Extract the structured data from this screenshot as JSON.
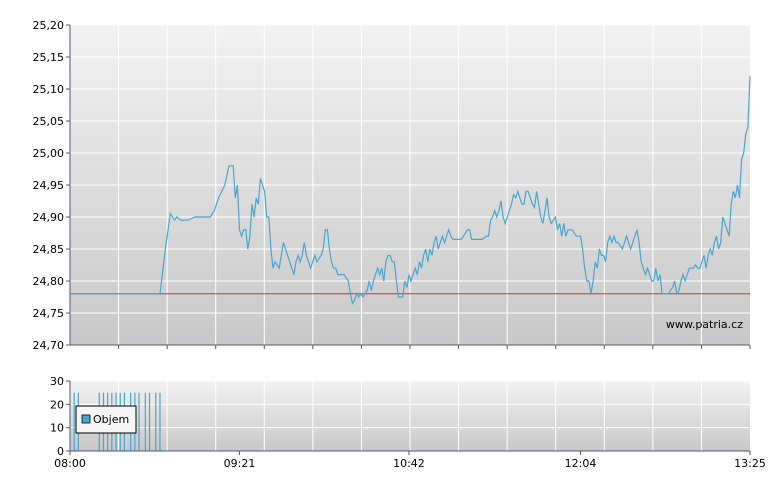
{
  "colors": {
    "price_line": "#4aa6cf",
    "reference_line": "#e03030",
    "volume_bar": "#4aa6cf",
    "grid": "#ffffff",
    "plot_top": "#f2f2f2",
    "plot_bottom": "#c8c8c8",
    "axis": "#555577"
  },
  "watermark": "www.patria.cz",
  "chart_data": [
    {
      "type": "line",
      "title": "",
      "xlabel": "",
      "ylabel": "",
      "ylim": [
        24.7,
        25.2
      ],
      "xlim_minutes": [
        0,
        325
      ],
      "y_ticks": [
        "24,70",
        "24,75",
        "24,80",
        "24,85",
        "24,90",
        "24,95",
        "25,00",
        "25,05",
        "25,10",
        "25,15",
        "25,20"
      ],
      "reference_value": 24.78,
      "grid": true,
      "series": [
        {
          "points": [
            [
              0,
              24.78
            ],
            [
              43,
              24.78
            ],
            [
              46,
              24.86
            ],
            [
              48,
              24.905
            ],
            [
              50,
              24.895
            ],
            [
              51,
              24.9
            ],
            [
              53,
              24.895
            ],
            [
              56,
              24.895
            ],
            [
              60,
              24.9
            ],
            [
              64,
              24.9
            ],
            [
              67,
              24.9
            ],
            [
              69,
              24.91
            ],
            [
              71,
              24.93
            ],
            [
              74,
              24.95
            ],
            [
              76,
              24.98
            ],
            [
              78,
              24.98
            ],
            [
              79,
              24.93
            ],
            [
              80,
              24.95
            ],
            [
              81,
              24.88
            ],
            [
              82,
              24.87
            ],
            [
              83,
              24.88
            ],
            [
              84,
              24.88
            ],
            [
              85,
              24.85
            ],
            [
              86,
              24.87
            ],
            [
              87,
              24.92
            ],
            [
              88,
              24.9
            ],
            [
              89,
              24.93
            ],
            [
              90,
              24.92
            ],
            [
              91,
              24.96
            ],
            [
              92,
              24.95
            ],
            [
              93,
              24.94
            ],
            [
              94,
              24.9
            ],
            [
              95,
              24.9
            ],
            [
              96,
              24.85
            ],
            [
              97,
              24.82
            ],
            [
              98,
              24.83
            ],
            [
              100,
              24.82
            ],
            [
              102,
              24.86
            ],
            [
              104,
              24.84
            ],
            [
              106,
              24.82
            ],
            [
              107,
              24.81
            ],
            [
              108,
              24.83
            ],
            [
              109,
              24.84
            ],
            [
              110,
              24.83
            ],
            [
              111,
              24.84
            ],
            [
              112,
              24.86
            ],
            [
              113,
              24.84
            ],
            [
              115,
              24.82
            ],
            [
              117,
              24.84
            ],
            [
              118,
              24.83
            ],
            [
              120,
              24.84
            ],
            [
              121,
              24.85
            ],
            [
              122,
              24.88
            ],
            [
              123,
              24.88
            ],
            [
              124,
              24.85
            ],
            [
              125,
              24.83
            ],
            [
              126,
              24.82
            ],
            [
              127,
              24.82
            ],
            [
              128,
              24.81
            ],
            [
              131,
              24.81
            ],
            [
              133,
              24.8
            ],
            [
              134,
              24.78
            ],
            [
              135,
              24.765
            ],
            [
              136,
              24.77
            ],
            [
              137,
              24.78
            ],
            [
              138,
              24.775
            ],
            [
              139,
              24.78
            ],
            [
              140,
              24.775
            ],
            [
              141,
              24.78
            ],
            [
              142,
              24.785
            ],
            [
              143,
              24.8
            ],
            [
              144,
              24.785
            ],
            [
              145,
              24.8
            ],
            [
              146,
              24.81
            ],
            [
              147,
              24.82
            ],
            [
              148,
              24.81
            ],
            [
              149,
              24.82
            ],
            [
              150,
              24.8
            ],
            [
              151,
              24.83
            ],
            [
              152,
              24.84
            ],
            [
              153,
              24.84
            ],
            [
              154,
              24.83
            ],
            [
              155,
              24.83
            ],
            [
              156,
              24.8
            ],
            [
              157,
              24.775
            ],
            [
              158,
              24.775
            ],
            [
              159,
              24.775
            ],
            [
              160,
              24.8
            ],
            [
              161,
              24.79
            ],
            [
              162,
              24.81
            ],
            [
              163,
              24.8
            ],
            [
              164,
              24.81
            ],
            [
              165,
              24.82
            ],
            [
              166,
              24.81
            ],
            [
              167,
              24.83
            ],
            [
              168,
              24.82
            ],
            [
              169,
              24.84
            ],
            [
              170,
              24.85
            ],
            [
              171,
              24.83
            ],
            [
              172,
              24.85
            ],
            [
              173,
              24.84
            ],
            [
              174,
              24.86
            ],
            [
              175,
              24.87
            ],
            [
              176,
              24.85
            ],
            [
              177,
              24.86
            ],
            [
              178,
              24.87
            ],
            [
              179,
              24.86
            ],
            [
              180,
              24.87
            ],
            [
              181,
              24.88
            ],
            [
              182,
              24.87
            ],
            [
              183,
              24.865
            ],
            [
              185,
              24.865
            ],
            [
              187,
              24.865
            ],
            [
              188,
              24.87
            ],
            [
              190,
              24.88
            ],
            [
              191,
              24.88
            ],
            [
              192,
              24.865
            ],
            [
              193,
              24.865
            ],
            [
              196,
              24.865
            ],
            [
              197,
              24.865
            ],
            [
              199,
              24.87
            ],
            [
              200,
              24.87
            ],
            [
              201,
              24.895
            ],
            [
              202,
              24.9
            ],
            [
              203,
              24.91
            ],
            [
              204,
              24.9
            ],
            [
              205,
              24.91
            ],
            [
              206,
              24.925
            ],
            [
              207,
              24.9
            ],
            [
              208,
              24.89
            ],
            [
              209,
              24.9
            ],
            [
              210,
              24.91
            ],
            [
              211,
              24.92
            ],
            [
              212,
              24.935
            ],
            [
              213,
              24.93
            ],
            [
              214,
              24.94
            ],
            [
              215,
              24.93
            ],
            [
              216,
              24.92
            ],
            [
              217,
              24.92
            ],
            [
              218,
              24.94
            ],
            [
              219,
              24.94
            ],
            [
              220,
              24.93
            ],
            [
              221,
              24.92
            ],
            [
              222,
              24.915
            ],
            [
              223,
              24.94
            ],
            [
              224,
              24.92
            ],
            [
              225,
              24.9
            ],
            [
              226,
              24.89
            ],
            [
              227,
              24.91
            ],
            [
              228,
              24.93
            ],
            [
              229,
              24.9
            ],
            [
              230,
              24.89
            ],
            [
              232,
              24.9
            ],
            [
              233,
              24.88
            ],
            [
              234,
              24.89
            ],
            [
              235,
              24.87
            ],
            [
              236,
              24.89
            ],
            [
              237,
              24.87
            ],
            [
              238,
              24.88
            ],
            [
              240,
              24.88
            ],
            [
              242,
              24.87
            ],
            [
              244,
              24.87
            ],
            [
              245,
              24.85
            ],
            [
              246,
              24.82
            ],
            [
              247,
              24.8
            ],
            [
              248,
              24.8
            ],
            [
              249,
              24.78
            ],
            [
              250,
              24.8
            ],
            [
              251,
              24.83
            ],
            [
              252,
              24.82
            ],
            [
              253,
              24.85
            ],
            [
              254,
              24.84
            ],
            [
              255,
              24.84
            ],
            [
              256,
              24.83
            ],
            [
              257,
              24.86
            ],
            [
              258,
              24.87
            ],
            [
              259,
              24.86
            ],
            [
              260,
              24.87
            ],
            [
              261,
              24.86
            ],
            [
              262,
              24.86
            ],
            [
              264,
              24.85
            ],
            [
              265,
              24.86
            ],
            [
              266,
              24.87
            ],
            [
              267,
              24.86
            ],
            [
              268,
              24.85
            ],
            [
              269,
              24.86
            ],
            [
              270,
              24.87
            ],
            [
              271,
              24.88
            ],
            [
              272,
              24.86
            ],
            [
              273,
              24.83
            ],
            [
              274,
              24.82
            ],
            [
              275,
              24.81
            ],
            [
              276,
              24.82
            ],
            [
              277,
              24.81
            ],
            [
              278,
              24.8
            ],
            [
              279,
              24.8
            ],
            [
              280,
              24.82
            ],
            [
              281,
              24.8
            ],
            [
              282,
              24.81
            ],
            [
              283,
              24.78
            ],
            [
              284,
              24.78
            ],
            [
              285,
              24.78
            ],
            [
              286,
              24.78
            ],
            [
              287,
              24.785
            ],
            [
              288,
              24.79
            ],
            [
              289,
              24.8
            ],
            [
              290,
              24.78
            ],
            [
              291,
              24.785
            ],
            [
              292,
              24.8
            ],
            [
              293,
              24.81
            ],
            [
              294,
              24.8
            ],
            [
              295,
              24.81
            ],
            [
              296,
              24.82
            ],
            [
              297,
              24.82
            ],
            [
              298,
              24.82
            ],
            [
              299,
              24.825
            ],
            [
              300,
              24.82
            ],
            [
              301,
              24.82
            ],
            [
              302,
              24.83
            ],
            [
              303,
              24.84
            ],
            [
              304,
              24.82
            ],
            [
              305,
              24.84
            ],
            [
              306,
              24.85
            ],
            [
              307,
              24.84
            ],
            [
              308,
              24.86
            ],
            [
              309,
              24.87
            ],
            [
              310,
              24.85
            ],
            [
              311,
              24.86
            ],
            [
              312,
              24.9
            ],
            [
              313,
              24.89
            ],
            [
              314,
              24.88
            ],
            [
              315,
              24.87
            ],
            [
              316,
              24.92
            ],
            [
              317,
              24.94
            ],
            [
              318,
              24.93
            ],
            [
              319,
              24.95
            ],
            [
              320,
              24.93
            ],
            [
              321,
              24.99
            ],
            [
              322,
              25.0
            ],
            [
              323,
              25.03
            ],
            [
              324,
              25.04
            ],
            [
              325,
              25.12
            ]
          ]
        }
      ]
    },
    {
      "type": "bar",
      "title": "",
      "xlabel": "",
      "ylabel": "",
      "ylim": [
        0,
        30
      ],
      "y_ticks": [
        "0",
        "10",
        "20",
        "30"
      ],
      "x_ticks": [
        "08:00",
        "09:21",
        "10:42",
        "12:04",
        "13:25"
      ],
      "x_tick_minutes": [
        0,
        81,
        162,
        244,
        325
      ],
      "grid": true,
      "legend": {
        "entries": [
          "Objem"
        ],
        "placement": "bottom-left"
      },
      "series": [
        {
          "name": "Objem",
          "x_minutes": [
            2,
            4,
            14,
            16,
            18,
            20,
            22,
            24,
            26,
            29,
            31,
            33,
            36,
            38,
            41,
            43
          ],
          "values": [
            25,
            25,
            25,
            25,
            25,
            25,
            25,
            25,
            25,
            25,
            25,
            25,
            25,
            25,
            25,
            25
          ]
        }
      ]
    }
  ]
}
